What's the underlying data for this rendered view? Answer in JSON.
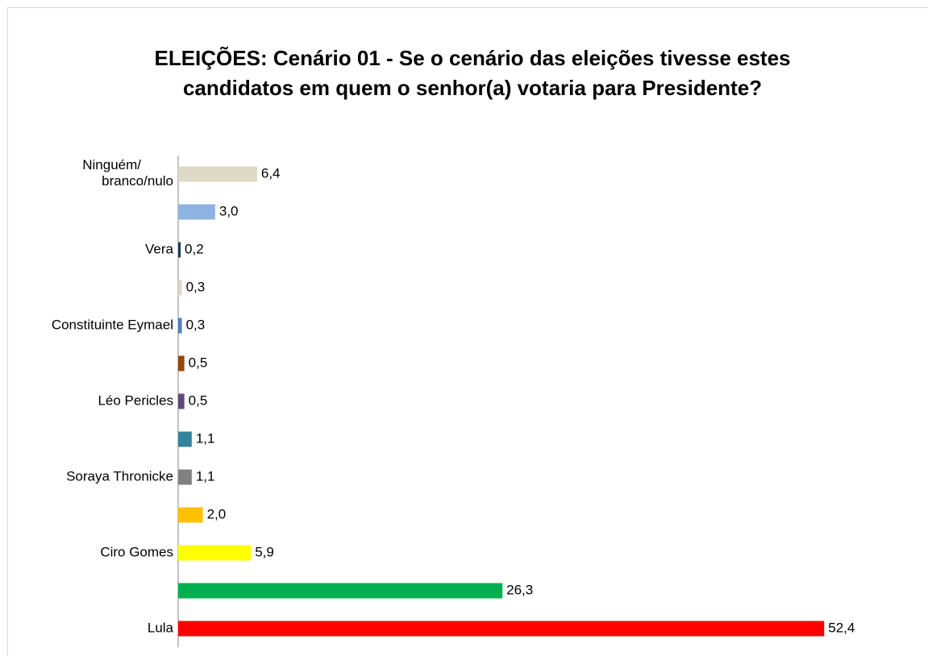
{
  "chart_data": {
    "type": "barh",
    "title": "ELEIÇÕES: Cenário 01 - Se o cenário das eleições tivesse estes candidatos em quem o senhor(a) votaria para Presidente?",
    "categories": [
      "Ninguém/branco/nulo",
      null,
      "Vera",
      null,
      "Constituinte Eymael",
      null,
      "Léo Pericles",
      null,
      "Soraya Thronicke",
      null,
      "Ciro Gomes",
      null,
      "Lula"
    ],
    "values": [
      6.4,
      3.0,
      0.2,
      0.3,
      0.3,
      0.5,
      0.5,
      1.1,
      1.1,
      2.0,
      5.9,
      26.3,
      52.4
    ],
    "value_labels": [
      "6,4",
      "3,0",
      "0,2",
      "0,3",
      "0,3",
      "0,5",
      "0,5",
      "1,1",
      "1,1",
      "2,0",
      "5,9",
      "26,3",
      "52,4"
    ],
    "colors": [
      "#ddd9c4",
      "#8db3e2",
      "#1f3864",
      "#ddd9c4",
      "#4f81bd",
      "#974706",
      "#604a7b",
      "#31849b",
      "#808080",
      "#ffc000",
      "#ffff00",
      "#00b050",
      "#ff0000"
    ],
    "xlim": [
      0,
      55
    ]
  }
}
